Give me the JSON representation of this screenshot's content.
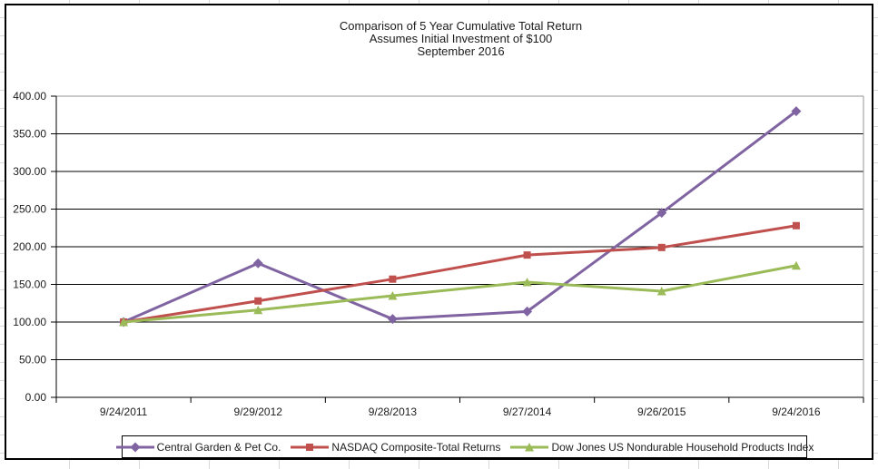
{
  "window": {
    "background_color": "#ffffff",
    "grid_hint_color": "#d9d9d9"
  },
  "chart_data": {
    "type": "line",
    "title": "Comparison of 5 Year Cumulative Total Return",
    "subtitle": "Assumes Initial Investment of $100",
    "subtitle2": "September 2016",
    "xlabel": "",
    "ylabel": "",
    "categories": [
      "9/24/2011",
      "9/29/2012",
      "9/28/2013",
      "9/27/2014",
      "9/26/2015",
      "9/24/2016"
    ],
    "series": [
      {
        "name": "Central Garden & Pet Co.",
        "color": "#8064A2",
        "marker": "diamond",
        "values": [
          100.0,
          178.0,
          104.0,
          114.0,
          245.0,
          380.0
        ]
      },
      {
        "name": "NASDAQ Composite-Total Returns",
        "color": "#C0504D",
        "marker": "square",
        "values": [
          100.0,
          128.0,
          157.0,
          189.0,
          199.0,
          228.0
        ]
      },
      {
        "name": "Dow Jones US Nondurable Household Products Index",
        "color": "#9BBB59",
        "marker": "triangle",
        "values": [
          100.0,
          116.0,
          135.0,
          153.0,
          141.0,
          175.0
        ]
      }
    ],
    "ylim": [
      0,
      400
    ],
    "ytick_step": 50,
    "yticks": [
      "0.00",
      "50.00",
      "100.00",
      "150.00",
      "200.00",
      "250.00",
      "300.00",
      "350.00",
      "400.00"
    ],
    "grid": true,
    "legend_position": "bottom",
    "axis_color": "#000000",
    "gridline_color": "#000000",
    "plot_border_color": "#969696",
    "text_color": "#1c1c1c"
  }
}
